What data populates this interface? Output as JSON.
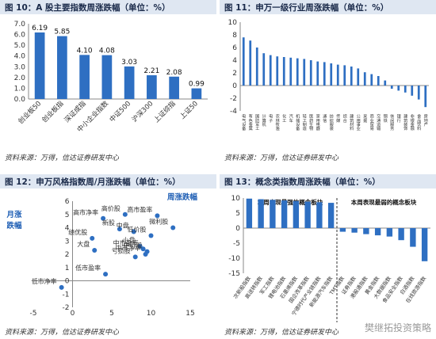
{
  "panels": {
    "fig10": {
      "title": "图 10：A 股主要指数周涨跌幅（单位：%）",
      "source": "资料来源：万得，信达证券研发中心"
    },
    "fig11": {
      "title": "图 11：申万一级行业周涨跌幅（单位：%）",
      "source": "资料来源：万得，信达证券研发中心"
    },
    "fig12": {
      "title": "图 12：申万风格指数周/月涨跌幅（单位：%）",
      "source": "资料来源：万得，信达证券研发中心"
    },
    "fig13": {
      "title": "图 13：概念类指数周涨跌幅（单位：%）",
      "source": "资料来源：万得，信达证券研发中心"
    }
  },
  "watermark": "樊继拓投资策略",
  "colors": {
    "bar": "#2e6fc2",
    "header_bg": "#dfe7f2",
    "axis": "#888888"
  },
  "chart_data": [
    {
      "id": "fig10",
      "type": "bar",
      "categories": [
        "创业板50",
        "创业板指",
        "深证成指",
        "中小企业指数",
        "中证500",
        "沪深300",
        "上证综指",
        "上证50"
      ],
      "values": [
        6.19,
        5.85,
        4.1,
        4.08,
        3.03,
        2.21,
        2.08,
        0.99
      ],
      "value_labels": [
        "6.19",
        "5.85",
        "4.10",
        "4.08",
        "3.03",
        "2.21",
        "2.08",
        "0.99"
      ],
      "ylim": [
        0,
        7
      ],
      "yticks": [
        "0.0",
        "1.0",
        "2.0",
        "3.0",
        "4.0",
        "5.0",
        "6.0",
        "7.0"
      ],
      "grid": false
    },
    {
      "id": "fig11",
      "type": "bar",
      "categories": [
        "电气设备",
        "有色金属",
        "国防军工",
        "计算机",
        "电子",
        "农林牧渔",
        "化工",
        "汽车",
        "机械设备",
        "轻工制造",
        "医药生物",
        "家用电器",
        "通信",
        "纺织服装",
        "传媒",
        "综合",
        "建筑材料",
        "公用事业",
        "采掘",
        "商业贸易",
        "交通运输",
        "钢铁",
        "休闲服务",
        "银行",
        "建筑装饰",
        "非银金融",
        "食品饮料",
        "房地产"
      ],
      "values": [
        7.6,
        7.1,
        6.0,
        5.1,
        4.8,
        4.6,
        4.5,
        4.4,
        4.3,
        4.2,
        4.0,
        3.8,
        3.7,
        3.5,
        3.3,
        3.2,
        3.0,
        2.7,
        2.1,
        1.8,
        1.5,
        0.8,
        -0.5,
        -0.8,
        -1.1,
        -1.6,
        -2.2,
        -3.4
      ],
      "ylim": [
        -4,
        10
      ],
      "yticks": [
        "-4",
        "-2",
        "0",
        "2",
        "4",
        "6",
        "8",
        "10"
      ],
      "grid": false
    },
    {
      "id": "fig12",
      "type": "scatter",
      "xlabel": "周涨跌幅",
      "ylabel": "月涨跌幅",
      "xlim": [
        -5,
        15
      ],
      "ylim": [
        -2,
        6
      ],
      "xticks": [
        "-5",
        "0",
        "5",
        "10",
        "15"
      ],
      "yticks": [
        "-2",
        "-1",
        "0",
        "1",
        "2",
        "3",
        "4",
        "5",
        "6"
      ],
      "points": [
        {
          "label": "高价股",
          "x": 6.7,
          "y": 5.0
        },
        {
          "label": "高市盈率",
          "x": 10.8,
          "y": 4.9
        },
        {
          "label": "高市净率",
          "x": 3.9,
          "y": 4.7
        },
        {
          "label": "新股",
          "x": 6.0,
          "y": 3.9
        },
        {
          "label": "微利股",
          "x": 12.8,
          "y": 4.0
        },
        {
          "label": "绩优股",
          "x": 2.5,
          "y": 3.2
        },
        {
          "label": "中盘",
          "x": 7.8,
          "y": 3.7
        },
        {
          "label": "低价股",
          "x": 10.0,
          "y": 3.4
        },
        {
          "label": "大盘",
          "x": 2.8,
          "y": 2.3
        },
        {
          "label": "小盘",
          "x": 8.6,
          "y": 2.6
        },
        {
          "label": "中市盈率",
          "x": 9.0,
          "y": 2.4
        },
        {
          "label": "中价股",
          "x": 9.5,
          "y": 2.2
        },
        {
          "label": "中市净率",
          "x": 9.3,
          "y": 2.0
        },
        {
          "label": "亏损股",
          "x": 8.0,
          "y": 1.8
        },
        {
          "label": "低市盈率",
          "x": 4.2,
          "y": 0.5
        },
        {
          "label": "低市净率",
          "x": -1.4,
          "y": -0.5
        }
      ]
    },
    {
      "id": "fig13",
      "type": "bar",
      "categories": [
        "次新股指数",
        "高送转指数",
        "军工指数",
        "锂电池指数",
        "石墨烯指数",
        "国企改革指数",
        "宁德时代产业链指数",
        "新能源汽车指数",
        "TMT指数",
        "证券指数",
        "港股通指数",
        "黄金指数",
        "大数据指数",
        "食品安全指数",
        "白酒指数",
        "在线旅游指数"
      ],
      "values": [
        9.8,
        9.6,
        9.4,
        9.2,
        9.0,
        8.8,
        8.6,
        8.4,
        -1.2,
        -1.5,
        -2.0,
        -2.4,
        -2.8,
        -4.0,
        -6.2,
        -11.0
      ],
      "ylim": [
        -15,
        10
      ],
      "yticks": [
        "-15",
        "-10",
        "-5",
        "0",
        "5",
        "10"
      ],
      "annotations": [
        "本周表现最强的概念板块",
        "本周表现最弱的概念板块"
      ],
      "grid": false
    }
  ]
}
